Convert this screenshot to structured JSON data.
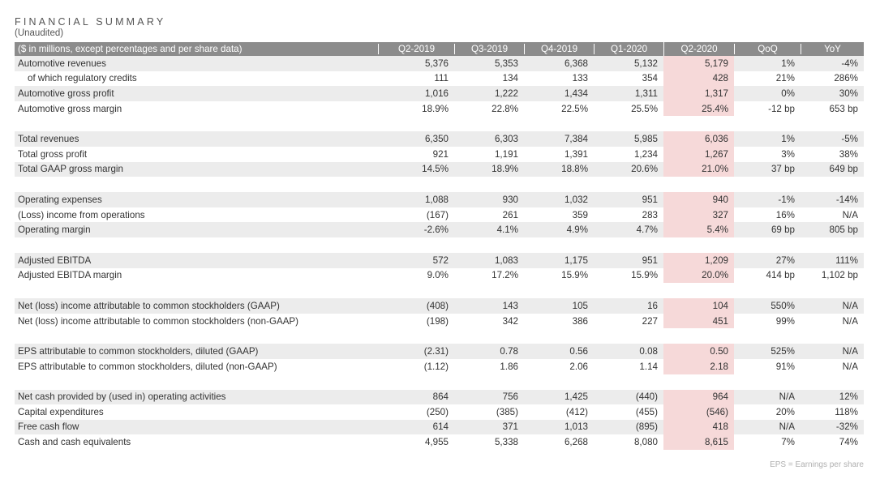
{
  "title": "FINANCIAL SUMMARY",
  "subtitle": "(Unaudited)",
  "header": {
    "label": "($ in millions, except percentages and per share data)",
    "columns": [
      "Q2-2019",
      "Q3-2019",
      "Q4-2019",
      "Q1-2020",
      "Q2-2020",
      "QoQ",
      "YoY"
    ]
  },
  "groups": [
    {
      "rows": [
        {
          "label": "Automotive revenues",
          "indent": false,
          "values": [
            "5,376",
            "5,353",
            "6,368",
            "5,132",
            "5,179",
            "1%",
            "-4%"
          ]
        },
        {
          "label": "of which regulatory credits",
          "indent": true,
          "values": [
            "111",
            "134",
            "133",
            "354",
            "428",
            "21%",
            "286%"
          ]
        },
        {
          "label": "Automotive gross profit",
          "indent": false,
          "values": [
            "1,016",
            "1,222",
            "1,434",
            "1,311",
            "1,317",
            "0%",
            "30%"
          ]
        },
        {
          "label": "Automotive gross margin",
          "indent": false,
          "values": [
            "18.9%",
            "22.8%",
            "22.5%",
            "25.5%",
            "25.4%",
            "-12 bp",
            "653 bp"
          ]
        }
      ]
    },
    {
      "rows": [
        {
          "label": "Total revenues",
          "indent": false,
          "values": [
            "6,350",
            "6,303",
            "7,384",
            "5,985",
            "6,036",
            "1%",
            "-5%"
          ]
        },
        {
          "label": "Total gross profit",
          "indent": false,
          "values": [
            "921",
            "1,191",
            "1,391",
            "1,234",
            "1,267",
            "3%",
            "38%"
          ]
        },
        {
          "label": "Total GAAP gross margin",
          "indent": false,
          "values": [
            "14.5%",
            "18.9%",
            "18.8%",
            "20.6%",
            "21.0%",
            "37 bp",
            "649 bp"
          ]
        }
      ]
    },
    {
      "rows": [
        {
          "label": "Operating expenses",
          "indent": false,
          "values": [
            "1,088",
            "930",
            "1,032",
            "951",
            "940",
            "-1%",
            "-14%"
          ]
        },
        {
          "label": "(Loss) income from operations",
          "indent": false,
          "values": [
            "(167)",
            "261",
            "359",
            "283",
            "327",
            "16%",
            "N/A"
          ]
        },
        {
          "label": "Operating margin",
          "indent": false,
          "values": [
            "-2.6%",
            "4.1%",
            "4.9%",
            "4.7%",
            "5.4%",
            "69 bp",
            "805 bp"
          ]
        }
      ]
    },
    {
      "rows": [
        {
          "label": "Adjusted EBITDA",
          "indent": false,
          "values": [
            "572",
            "1,083",
            "1,175",
            "951",
            "1,209",
            "27%",
            "111%"
          ]
        },
        {
          "label": "Adjusted EBITDA margin",
          "indent": false,
          "values": [
            "9.0%",
            "17.2%",
            "15.9%",
            "15.9%",
            "20.0%",
            "414 bp",
            "1,102 bp"
          ]
        }
      ]
    },
    {
      "rows": [
        {
          "label": "Net (loss) income attributable to common stockholders (GAAP)",
          "indent": false,
          "values": [
            "(408)",
            "143",
            "105",
            "16",
            "104",
            "550%",
            "N/A"
          ]
        },
        {
          "label": "Net (loss) income attributable to common stockholders (non-GAAP)",
          "indent": false,
          "values": [
            "(198)",
            "342",
            "386",
            "227",
            "451",
            "99%",
            "N/A"
          ]
        }
      ]
    },
    {
      "rows": [
        {
          "label": "EPS attributable to common stockholders, diluted (GAAP)",
          "indent": false,
          "values": [
            "(2.31)",
            "0.78",
            "0.56",
            "0.08",
            "0.50",
            "525%",
            "N/A"
          ]
        },
        {
          "label": "EPS attributable to common stockholders, diluted (non-GAAP)",
          "indent": false,
          "values": [
            "(1.12)",
            "1.86",
            "2.06",
            "1.14",
            "2.18",
            "91%",
            "N/A"
          ]
        }
      ]
    },
    {
      "rows": [
        {
          "label": "Net cash provided by (used in) operating activities",
          "indent": false,
          "values": [
            "864",
            "756",
            "1,425",
            "(440)",
            "964",
            "N/A",
            "12%"
          ]
        },
        {
          "label": "Capital expenditures",
          "indent": false,
          "values": [
            "(250)",
            "(385)",
            "(412)",
            "(455)",
            "(546)",
            "20%",
            "118%"
          ]
        },
        {
          "label": "Free cash flow",
          "indent": false,
          "values": [
            "614",
            "371",
            "1,013",
            "(895)",
            "418",
            "N/A",
            "-32%"
          ]
        },
        {
          "label": "Cash and cash equivalents",
          "indent": false,
          "values": [
            "4,955",
            "5,338",
            "6,268",
            "8,080",
            "8,615",
            "7%",
            "74%"
          ]
        }
      ]
    }
  ],
  "footnote": "EPS = Earnings per share",
  "colors": {
    "header_bg": "#8c8c8c",
    "row_shade": "#ececec",
    "highlight": "#f6d9d9"
  }
}
